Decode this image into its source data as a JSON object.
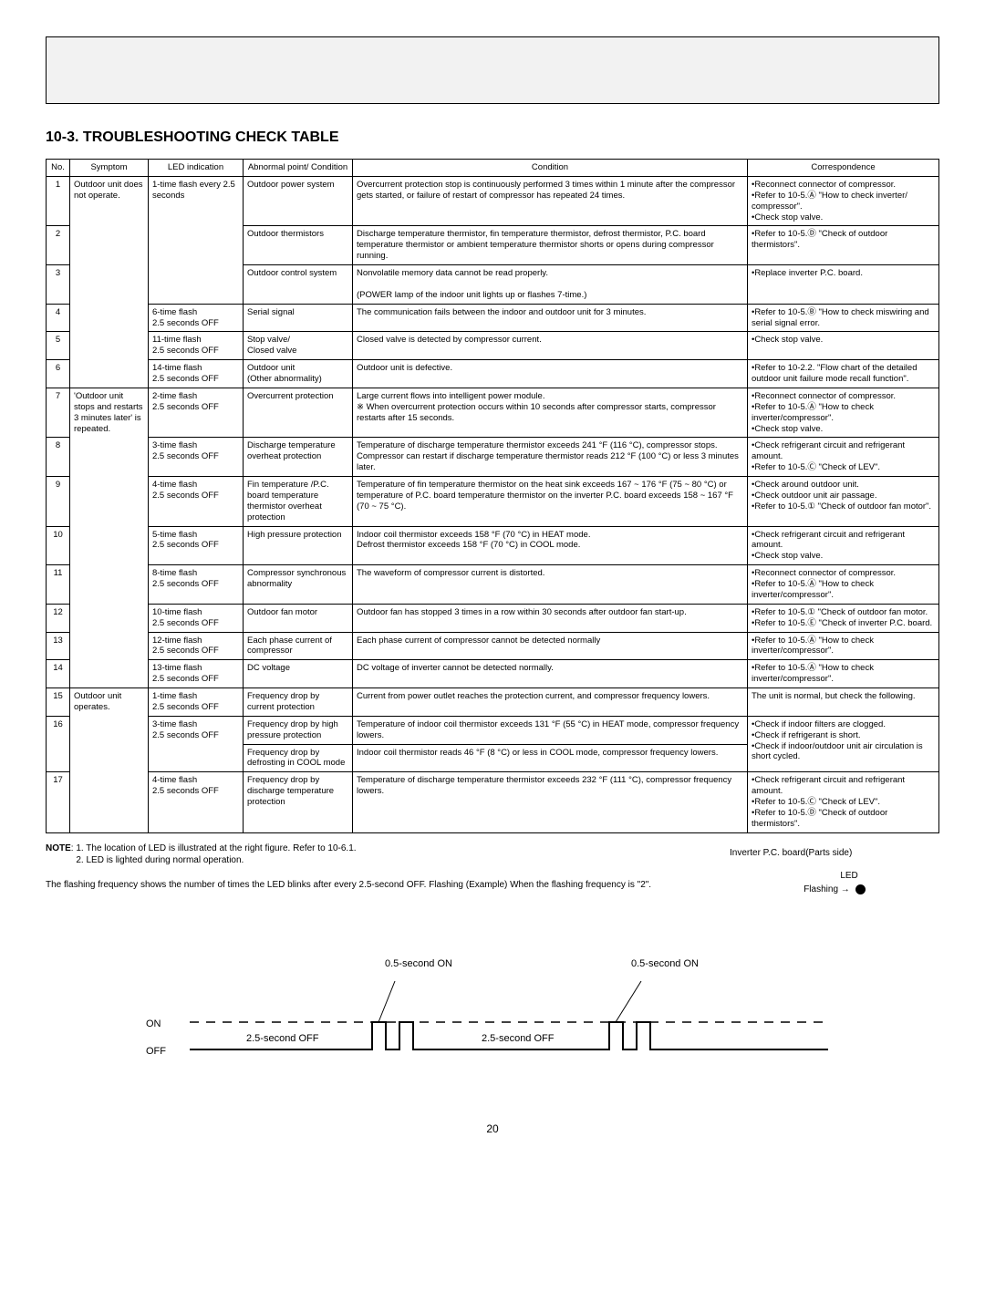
{
  "section_title": "10-3. TROUBLESHOOTING CHECK TABLE",
  "headers": {
    "no": "No.",
    "symptom": "Symptom",
    "led": "LED indication",
    "abnormal": "Abnormal point/\nCondition",
    "condition": "Condition",
    "correspondence": "Correspondence"
  },
  "symptom_group_a": "Outdoor unit does not operate.",
  "symptom_group_b": "'Outdoor unit stops and restarts 3 minutes later' is repeated.",
  "symptom_group_c": "Outdoor unit operates.",
  "rows": [
    {
      "no": "1",
      "led": "1-time flash every 2.5 seconds",
      "abnormal": "Outdoor power system",
      "cond": "Overcurrent protection stop is continuously performed 3 times within 1 minute after the compressor gets started, or failure of restart of compressor has repeated 24 times.",
      "corr": "•Reconnect connector of compressor.\n•Refer to 10-5.Ⓐ \"How to check inverter/ compressor\".\n•Check stop valve."
    },
    {
      "no": "2",
      "led": "",
      "abnormal": "Outdoor thermistors",
      "cond": "Discharge temperature thermistor, fin temperature thermistor, defrost thermistor, P.C. board temperature thermistor or ambient temperature thermistor shorts or opens during compressor running.",
      "corr": "•Refer to 10-5.Ⓓ \"Check of outdoor thermistors\"."
    },
    {
      "no": "3",
      "led": "",
      "abnormal": "Outdoor control system",
      "cond": "Nonvolatile memory data cannot be read properly.\n\n(POWER lamp of the indoor unit lights up or flashes 7-time.)",
      "corr": "•Replace inverter P.C. board."
    },
    {
      "no": "4",
      "led": "6-time flash\n2.5 seconds OFF",
      "abnormal": "Serial signal",
      "cond": "The communication fails between the indoor and outdoor unit for 3 minutes.",
      "corr": "•Refer to 10-5.Ⓑ \"How to check miswiring and serial signal error."
    },
    {
      "no": "5",
      "led": "11-time flash\n2.5 seconds OFF",
      "abnormal": "Stop valve/\nClosed valve",
      "cond": "Closed valve is detected by compressor current.",
      "corr": "•Check stop valve."
    },
    {
      "no": "6",
      "led": "14-time flash\n2.5 seconds OFF",
      "abnormal": "Outdoor unit\n(Other abnormality)",
      "cond": "Outdoor unit is defective.",
      "corr": "•Refer to 10-2.2. \"Flow chart of the detailed outdoor unit failure mode recall function\"."
    },
    {
      "no": "7",
      "led": "2-time flash\n2.5 seconds OFF",
      "abnormal": "Overcurrent protection",
      "cond": "Large current flows into intelligent power module.\n※ When overcurrent protection occurs within 10 seconds after compressor starts, compressor restarts after 15 seconds.",
      "corr": "•Reconnect connector of compressor.\n•Refer to 10-5.Ⓐ \"How to check inverter/compressor\".\n•Check stop valve."
    },
    {
      "no": "8",
      "led": "3-time flash\n2.5 seconds OFF",
      "abnormal": "Discharge temperature overheat protection",
      "cond": "Temperature of discharge temperature thermistor exceeds 241 °F (116 °C), compressor stops. Compressor can restart if discharge temperature thermistor reads 212 °F (100 °C) or less 3 minutes later.",
      "corr": "•Check refrigerant circuit and refrigerant amount.\n•Refer to 10-5.Ⓒ \"Check of LEV\"."
    },
    {
      "no": "9",
      "led": "4-time flash\n2.5 seconds OFF",
      "abnormal": "Fin temperature /P.C. board temperature thermistor overheat protection",
      "cond": "Temperature of fin temperature thermistor on the heat sink exceeds 167 ~ 176 °F (75 ~ 80 °C) or temperature of P.C. board temperature thermistor on the inverter P.C. board exceeds 158 ~ 167 °F (70 ~ 75 °C).",
      "corr": "•Check around outdoor unit.\n•Check outdoor unit air passage.\n•Refer to 10-5.① \"Check of outdoor fan motor\"."
    },
    {
      "no": "10",
      "led": "5-time flash\n2.5 seconds OFF",
      "abnormal": "High pressure protection",
      "cond": "Indoor coil thermistor exceeds 158 °F (70 °C) in HEAT mode.\nDefrost thermistor exceeds 158 °F (70 °C) in COOL mode.",
      "corr": "•Check refrigerant circuit and refrigerant amount.\n•Check stop valve."
    },
    {
      "no": "11",
      "led": "8-time flash\n2.5 seconds OFF",
      "abnormal": "Compressor synchronous abnormality",
      "cond": "The waveform of compressor current is distorted.",
      "corr": "•Reconnect connector of compressor.\n•Refer to 10-5.Ⓐ \"How to check inverter/compressor\"."
    },
    {
      "no": "12",
      "led": "10-time flash\n2.5 seconds OFF",
      "abnormal": "Outdoor fan motor",
      "cond": "Outdoor fan has stopped 3 times in a row within 30 seconds after outdoor fan start-up.",
      "corr": "•Refer to 10-5.① \"Check of outdoor fan motor.\n•Refer to 10-5.Ⓔ \"Check of inverter P.C. board."
    },
    {
      "no": "13",
      "led": "12-time flash\n2.5 seconds OFF",
      "abnormal": "Each phase current of compressor",
      "cond": "Each phase current of compressor cannot be detected normally",
      "corr": "•Refer to 10-5.Ⓐ \"How to check inverter/compressor\"."
    },
    {
      "no": "14",
      "led": "13-time flash\n2.5 seconds OFF",
      "abnormal": "DC voltage",
      "cond": "DC voltage of inverter cannot be detected normally.",
      "corr": "•Refer to 10-5.Ⓐ \"How to check inverter/compressor\"."
    },
    {
      "no": "15",
      "led": "1-time flash\n2.5 seconds OFF",
      "abnormal": "Frequency drop by current protection",
      "cond": "Current from power outlet reaches the protection current, and compressor frequency lowers.",
      "corr": "The unit is normal, but check the following."
    },
    {
      "no": "16a",
      "led": "3-time flash\n2.5 seconds OFF",
      "abnormal": "Frequency drop by high pressure protection",
      "cond": "Temperature of indoor coil thermistor exceeds 131 °F (55 °C) in HEAT mode, compressor frequency lowers.",
      "corr": "•Check if indoor filters are clogged.\n•Check if refrigerant is short.\n•Check if indoor/outdoor unit air circulation is short cycled."
    },
    {
      "no": "16b",
      "led": "",
      "abnormal": "Frequency drop by defrosting in COOL mode",
      "cond": "Indoor coil thermistor reads 46 °F (8 °C) or less in COOL mode, compressor frequency lowers.",
      "corr": ""
    },
    {
      "no": "17",
      "led": "4-time flash\n2.5 seconds OFF",
      "abnormal": "Frequency drop by discharge temperature protection",
      "cond": "Temperature of discharge temperature thermistor exceeds 232 °F (111 °C), compressor frequency lowers.",
      "corr": "•Check refrigerant circuit and refrigerant amount.\n•Refer to 10-5.Ⓒ \"Check of LEV\".\n•Refer to 10-5.Ⓓ \"Check of outdoor thermistors\"."
    }
  ],
  "notes_label": "NOTE",
  "note1": "1. The location of LED is illustrated at the right figure. Refer to 10-6.1.",
  "note2": "2. LED is lighted during normal operation.",
  "flash_para": "The flashing frequency shows the number of times the LED blinks after every 2.5-second OFF. Flashing (Example) When the flashing frequency is \"2\".",
  "inverter_caption": "Inverter P.C. board(Parts side)",
  "led_text": "LED",
  "flashing_arrow": "Flashing →",
  "timing": {
    "on": "ON",
    "off": "OFF",
    "on_label": "0.5-second ON",
    "off_label": "2.5-second OFF"
  },
  "page_number": "20"
}
